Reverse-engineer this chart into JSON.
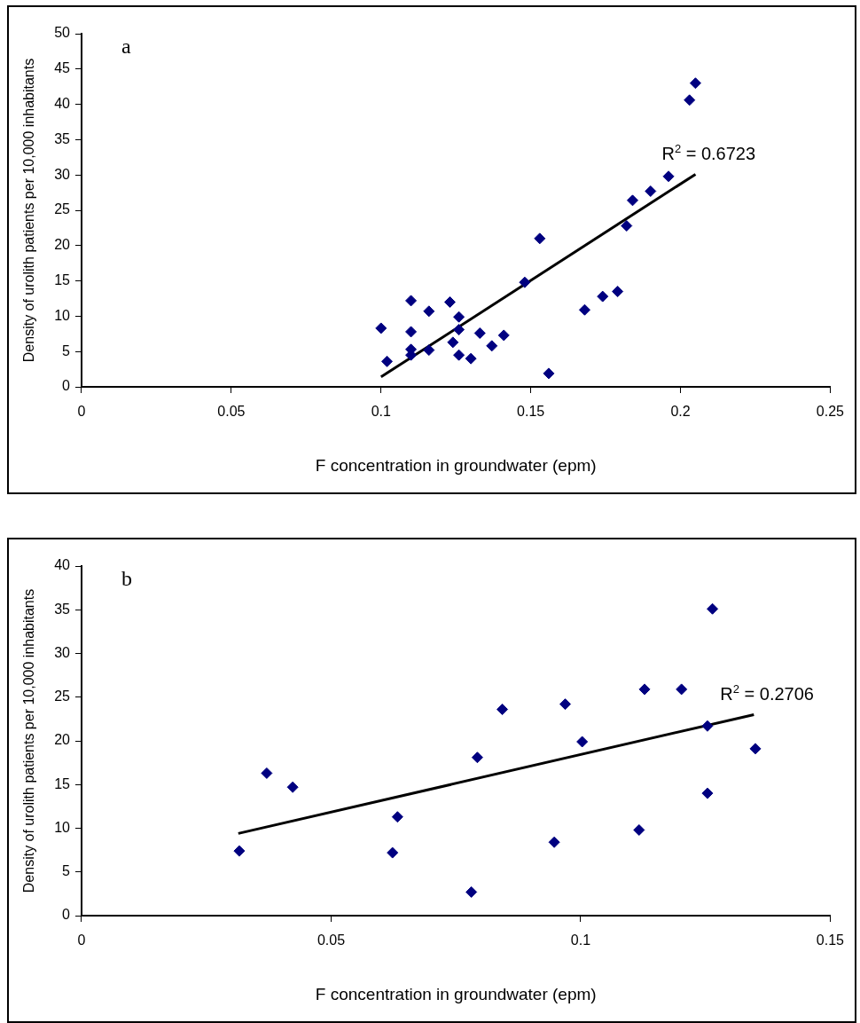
{
  "chart_data": [
    {
      "type": "scatter",
      "xlabel": "F concentration in groundwater (epm)",
      "ylabel": "Density of urolith patients per 10,000 inhabitants",
      "marker": "diamond",
      "xlim": [
        0,
        0.25
      ],
      "xticks": [
        0,
        0.05,
        0.1,
        0.15,
        0.2,
        0.25
      ],
      "ylim": [
        0,
        50
      ],
      "yticks": [
        0,
        5,
        10,
        15,
        20,
        25,
        30,
        35,
        40,
        45,
        50
      ],
      "annotations": [
        "a",
        {
          "text": "R$^{2}$ = 0.6723",
          "x": 0.205,
          "y": 30.1
        }
      ],
      "series": [
        {
          "color": "#000080",
          "x": [
            0.1,
            0.102,
            0.11,
            0.11,
            0.11,
            0.11,
            0.116,
            0.116,
            0.123,
            0.124,
            0.126,
            0.126,
            0.126,
            0.13,
            0.133,
            0.137,
            0.141,
            0.148,
            0.153,
            0.156,
            0.168,
            0.174,
            0.179,
            0.182,
            0.184,
            0.19,
            0.196,
            0.203,
            0.205
          ],
          "values": [
            8.3,
            3.6,
            12.2,
            7.8,
            5.3,
            4.5,
            10.7,
            5.2,
            12.0,
            6.3,
            9.9,
            8.1,
            4.5,
            4.0,
            7.6,
            5.8,
            7.3,
            14.8,
            21.0,
            1.9,
            10.9,
            12.8,
            13.5,
            22.8,
            26.4,
            27.7,
            29.8,
            40.6,
            43.0
          ]
        },
        {
          "type": "line",
          "color": "#000000",
          "marker": "none",
          "x": [
            0.1,
            0.205
          ],
          "values": [
            1.4,
            30.1
          ]
        }
      ]
    },
    {
      "type": "scatter",
      "xlabel": "F concentration in groundwater (epm)",
      "ylabel": "Density of urolith patients per 10,000 inhabitants",
      "marker": "diamond",
      "xlim": [
        0,
        0.15
      ],
      "xticks": [
        0,
        0.05,
        0.1,
        0.15
      ],
      "ylim": [
        0,
        40
      ],
      "yticks": [
        0,
        5,
        10,
        15,
        20,
        25,
        30,
        35,
        40
      ],
      "annotations": [
        "b",
        {
          "text": "R$^{2}$ = 0.2706",
          "x": 0.1347,
          "y": 23.0
        }
      ],
      "series": [
        {
          "color": "#000080",
          "x": [
            0.0316,
            0.0371,
            0.0423,
            0.0623,
            0.0633,
            0.0781,
            0.0793,
            0.0843,
            0.0947,
            0.0969,
            0.1003,
            0.1117,
            0.1128,
            0.1202,
            0.1254,
            0.1254,
            0.1264,
            0.135
          ],
          "values": [
            7.4,
            16.3,
            14.7,
            7.2,
            11.3,
            2.7,
            18.1,
            23.6,
            8.4,
            24.2,
            19.9,
            9.8,
            25.9,
            25.9,
            21.7,
            14.0,
            35.1,
            19.1
          ]
        },
        {
          "type": "line",
          "color": "#000000",
          "marker": "none",
          "x": [
            0.0314,
            0.1347
          ],
          "values": [
            9.4,
            23.0
          ]
        }
      ]
    }
  ]
}
